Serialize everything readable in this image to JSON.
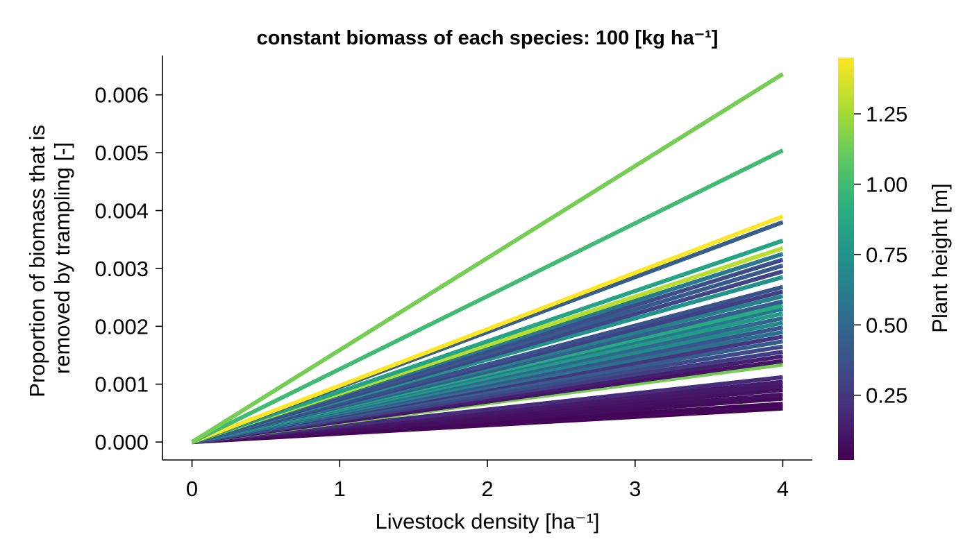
{
  "chart_data": {
    "type": "line",
    "title": "constant biomass of each species: 100 [kg ha⁻¹]",
    "xlabel": "Livestock density [ha⁻¹]",
    "ylabel_lines": [
      "Proportion of biomass that is",
      "removed by trampling [-]"
    ],
    "colorbar_label": "Plant height [m]",
    "xlim": [
      -0.2,
      4.2
    ],
    "ylim": [
      -0.00031,
      0.00668
    ],
    "xticks": [
      0,
      1,
      2,
      3,
      4
    ],
    "xtick_labels": [
      "0",
      "1",
      "2",
      "3",
      "4"
    ],
    "yticks": [
      0,
      0.001,
      0.002,
      0.003,
      0.004,
      0.005,
      0.006
    ],
    "ytick_labels": [
      "0.000",
      "0.001",
      "0.002",
      "0.003",
      "0.004",
      "0.005",
      "0.006"
    ],
    "colorbar_range": [
      0.02,
      1.45
    ],
    "colorbar_ticks": [
      0.25,
      0.5,
      0.75,
      1.0,
      1.25
    ],
    "colorbar_tick_labels": [
      "0.25",
      "0.50",
      "0.75",
      "1.00",
      "1.25"
    ],
    "colormap": "viridis",
    "x": [
      0,
      4
    ],
    "series_note": "each line: y = slope * x, slope = value at x=4 divided by 4; color from plant height",
    "series": [
      {
        "height": 0.03,
        "y_at_4": 0.00058
      },
      {
        "height": 0.05,
        "y_at_4": 0.00062
      },
      {
        "height": 0.04,
        "y_at_4": 0.00066
      },
      {
        "height": 0.06,
        "y_at_4": 0.00075
      },
      {
        "height": 0.08,
        "y_at_4": 0.00082
      },
      {
        "height": 0.09,
        "y_at_4": 0.0009
      },
      {
        "height": 0.11,
        "y_at_4": 0.00097
      },
      {
        "height": 0.13,
        "y_at_4": 0.00104
      },
      {
        "height": 0.2,
        "y_at_4": 0.00112
      },
      {
        "height": 1.15,
        "y_at_4": 0.00134
      },
      {
        "height": 0.1,
        "y_at_4": 0.0014
      },
      {
        "height": 0.15,
        "y_at_4": 0.00148
      },
      {
        "height": 0.28,
        "y_at_4": 0.00156
      },
      {
        "height": 0.35,
        "y_at_4": 0.00165
      },
      {
        "height": 0.45,
        "y_at_4": 0.00174
      },
      {
        "height": 0.25,
        "y_at_4": 0.00182
      },
      {
        "height": 0.55,
        "y_at_4": 0.0019
      },
      {
        "height": 0.4,
        "y_at_4": 0.00198
      },
      {
        "height": 0.7,
        "y_at_4": 0.00206
      },
      {
        "height": 0.5,
        "y_at_4": 0.00214
      },
      {
        "height": 0.8,
        "y_at_4": 0.00222
      },
      {
        "height": 0.6,
        "y_at_4": 0.0023
      },
      {
        "height": 0.9,
        "y_at_4": 0.00236
      },
      {
        "height": 0.45,
        "y_at_4": 0.00243
      },
      {
        "height": 0.65,
        "y_at_4": 0.00252
      },
      {
        "height": 0.3,
        "y_at_4": 0.0026
      },
      {
        "height": 0.38,
        "y_at_4": 0.00268
      },
      {
        "height": 0.75,
        "y_at_4": 0.00285
      },
      {
        "height": 0.32,
        "y_at_4": 0.00295
      },
      {
        "height": 0.42,
        "y_at_4": 0.00305
      },
      {
        "height": 0.36,
        "y_at_4": 0.00315
      },
      {
        "height": 0.6,
        "y_at_4": 0.00325
      },
      {
        "height": 1.3,
        "y_at_4": 0.00335
      },
      {
        "height": 0.85,
        "y_at_4": 0.00348
      },
      {
        "height": 0.45,
        "y_at_4": 0.0038
      },
      {
        "height": 1.45,
        "y_at_4": 0.0039
      },
      {
        "height": 1.0,
        "y_at_4": 0.00504
      },
      {
        "height": 1.15,
        "y_at_4": 0.00636
      }
    ]
  }
}
